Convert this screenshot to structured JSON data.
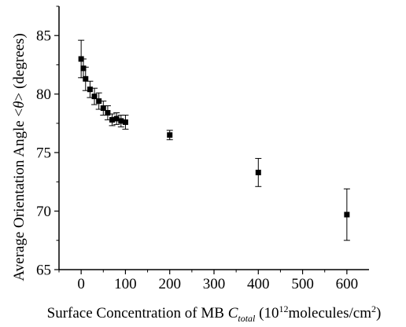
{
  "chart_data": {
    "type": "scatter",
    "title": "",
    "xlabel": {
      "prefix": "Surface Concentration of MB ",
      "var": "C",
      "sub": "total",
      "mid": " (10",
      "sup1": "12",
      "unit": "molecules/cm",
      "sup2": "2",
      "suffix": ")"
    },
    "ylabel": {
      "prefix": "Average Orientation Angle <",
      "var": "θ",
      "suffix": "> (degrees)"
    },
    "xlim": [
      -50,
      650
    ],
    "ylim": [
      65,
      87.5
    ],
    "x_ticks": [
      0,
      100,
      200,
      300,
      400,
      500,
      600
    ],
    "y_ticks": [
      65,
      70,
      75,
      80,
      85
    ],
    "grid": false,
    "legend": "none",
    "marker": "square",
    "color": "#000000",
    "points": [
      {
        "x": 0,
        "y": 83.0,
        "err": 1.6
      },
      {
        "x": 5,
        "y": 82.2,
        "err": 0.8
      },
      {
        "x": 10,
        "y": 81.3,
        "err": 1.0
      },
      {
        "x": 20,
        "y": 80.4,
        "err": 0.7
      },
      {
        "x": 30,
        "y": 79.8,
        "err": 0.7
      },
      {
        "x": 40,
        "y": 79.4,
        "err": 0.7
      },
      {
        "x": 50,
        "y": 78.8,
        "err": 0.6
      },
      {
        "x": 60,
        "y": 78.4,
        "err": 0.6
      },
      {
        "x": 70,
        "y": 77.8,
        "err": 0.5
      },
      {
        "x": 80,
        "y": 77.9,
        "err": 0.5
      },
      {
        "x": 90,
        "y": 77.7,
        "err": 0.5
      },
      {
        "x": 100,
        "y": 77.6,
        "err": 0.6
      },
      {
        "x": 200,
        "y": 76.5,
        "err": 0.4
      },
      {
        "x": 400,
        "y": 73.3,
        "err": 1.2
      },
      {
        "x": 600,
        "y": 69.7,
        "err": 2.2
      }
    ]
  }
}
